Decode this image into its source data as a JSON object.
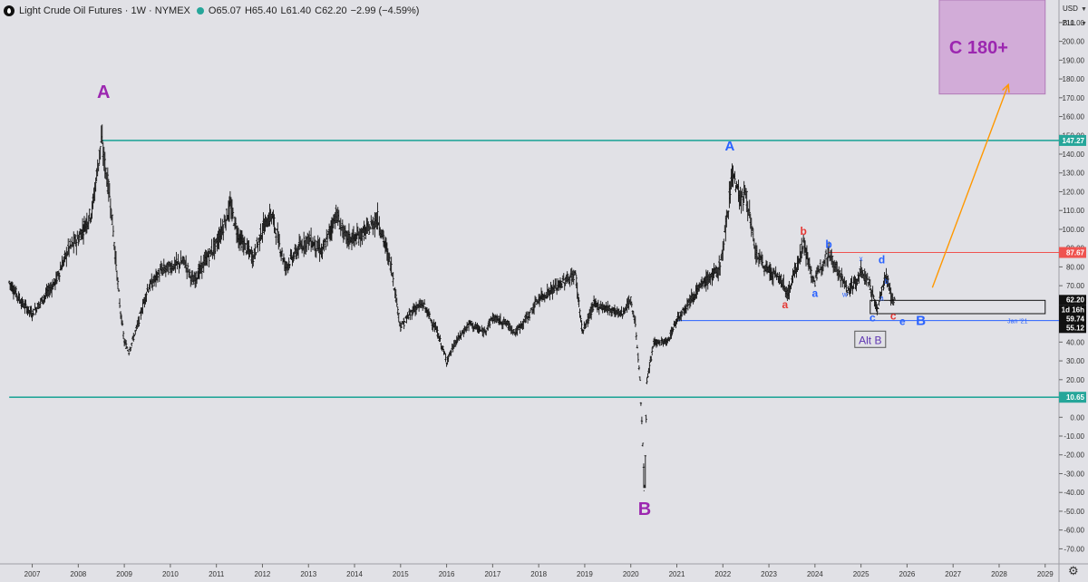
{
  "header": {
    "title": "Light Crude Oil Futures · 1W · NYMEX",
    "open": "O65.07",
    "high": "H65.40",
    "low": "L61.40",
    "close": "C62.20",
    "change": "−2.99 (−4.59%)"
  },
  "price_axis": {
    "unit_currency": "USD",
    "unit_measure": "BLL"
  },
  "colors": {
    "background": "#e1e1e6",
    "teal_level": "#26a69a",
    "red_level": "#ef5350",
    "blue_level": "#2962ff",
    "wave_purple": "#9c27b0",
    "wave_blue": "#2962ff",
    "wave_red": "#e53935",
    "target_box": "#d2acd8",
    "arrow": "#ff9800",
    "candles": "#111111"
  },
  "icons": {
    "symbol": "oil-drop-icon",
    "status": "market-status-dot-icon",
    "settings": "gear-icon"
  },
  "chart_data": {
    "type": "candlestick",
    "title": "Light Crude Oil Futures · 1W · NYMEX",
    "ylim": [
      -80,
      220
    ],
    "y_ticks": [
      -70,
      -60,
      -50,
      -40,
      -30,
      -20,
      -10,
      0,
      10,
      20,
      30,
      40,
      50,
      60,
      70,
      80,
      90,
      100,
      110,
      120,
      130,
      140,
      150,
      160,
      170,
      180,
      190,
      200,
      210
    ],
    "x_ticks": [
      "2007",
      "2008",
      "2009",
      "2010",
      "2011",
      "2012",
      "2013",
      "2014",
      "2015",
      "2016",
      "2017",
      "2018",
      "2019",
      "2020",
      "2021",
      "2022",
      "2023",
      "2024",
      "2025",
      "2026",
      "2027",
      "2028",
      "2029"
    ],
    "price_path": [
      [
        2006.5,
        72
      ],
      [
        2006.8,
        60
      ],
      [
        2007.0,
        55
      ],
      [
        2007.2,
        62
      ],
      [
        2007.5,
        72
      ],
      [
        2007.8,
        90
      ],
      [
        2008.0,
        95
      ],
      [
        2008.3,
        110
      ],
      [
        2008.5,
        147.27
      ],
      [
        2008.7,
        115
      ],
      [
        2008.9,
        60
      ],
      [
        2009.0,
        40
      ],
      [
        2009.1,
        35
      ],
      [
        2009.3,
        50
      ],
      [
        2009.5,
        68
      ],
      [
        2009.8,
        78
      ],
      [
        2010.0,
        80
      ],
      [
        2010.3,
        83
      ],
      [
        2010.5,
        72
      ],
      [
        2010.8,
        85
      ],
      [
        2011.0,
        92
      ],
      [
        2011.3,
        112
      ],
      [
        2011.5,
        95
      ],
      [
        2011.8,
        85
      ],
      [
        2012.0,
        100
      ],
      [
        2012.2,
        108
      ],
      [
        2012.5,
        80
      ],
      [
        2012.8,
        90
      ],
      [
        2013.0,
        95
      ],
      [
        2013.3,
        88
      ],
      [
        2013.6,
        108
      ],
      [
        2013.8,
        96
      ],
      [
        2014.0,
        95
      ],
      [
        2014.3,
        100
      ],
      [
        2014.5,
        106
      ],
      [
        2014.8,
        80
      ],
      [
        2015.0,
        48
      ],
      [
        2015.3,
        58
      ],
      [
        2015.5,
        60
      ],
      [
        2015.8,
        45
      ],
      [
        2016.0,
        30
      ],
      [
        2016.2,
        40
      ],
      [
        2016.5,
        50
      ],
      [
        2016.8,
        45
      ],
      [
        2017.0,
        53
      ],
      [
        2017.3,
        50
      ],
      [
        2017.5,
        45
      ],
      [
        2017.8,
        55
      ],
      [
        2018.0,
        63
      ],
      [
        2018.3,
        68
      ],
      [
        2018.6,
        73
      ],
      [
        2018.8,
        76
      ],
      [
        2018.95,
        45
      ],
      [
        2019.2,
        60
      ],
      [
        2019.5,
        58
      ],
      [
        2019.8,
        55
      ],
      [
        2020.0,
        62
      ],
      [
        2020.1,
        50
      ],
      [
        2020.2,
        20
      ],
      [
        2020.3,
        -37.63
      ],
      [
        2020.35,
        18
      ],
      [
        2020.5,
        40
      ],
      [
        2020.8,
        40
      ],
      [
        2021.0,
        52
      ],
      [
        2021.3,
        63
      ],
      [
        2021.6,
        72
      ],
      [
        2021.9,
        78
      ],
      [
        2022.0,
        88
      ],
      [
        2022.2,
        130.5
      ],
      [
        2022.4,
        115
      ],
      [
        2022.5,
        120
      ],
      [
        2022.7,
        88
      ],
      [
        2022.9,
        80
      ],
      [
        2023.0,
        78
      ],
      [
        2023.3,
        72
      ],
      [
        2023.4,
        65
      ],
      [
        2023.6,
        80
      ],
      [
        2023.75,
        93
      ],
      [
        2023.9,
        78
      ],
      [
        2024.0,
        72
      ],
      [
        2024.2,
        85
      ],
      [
        2024.3,
        87.67
      ],
      [
        2024.5,
        78
      ],
      [
        2024.7,
        68
      ],
      [
        2024.9,
        72
      ],
      [
        2025.0,
        78
      ],
      [
        2025.2,
        70
      ],
      [
        2025.35,
        57
      ],
      [
        2025.45,
        68
      ],
      [
        2025.55,
        76
      ],
      [
        2025.65,
        64
      ],
      [
        2025.75,
        62.2
      ]
    ],
    "last_bar": {
      "open": 65.07,
      "high": 65.4,
      "low": 61.4,
      "close": 62.2,
      "change": -2.99,
      "change_pct": -4.59
    },
    "levels": [
      {
        "value": 147.27,
        "color": "#26a69a",
        "label": "147.27",
        "from": 2008.5
      },
      {
        "value": 10.65,
        "color": "#26a69a",
        "label": "10.65",
        "from": 2006.5
      },
      {
        "value": 87.67,
        "color": "#ef5350",
        "label": "87.67",
        "from": 2024.3
      },
      {
        "value": 51.44,
        "color": "#2962ff",
        "label": "51.44",
        "from": 2021.0,
        "note": "Jan '21"
      }
    ],
    "price_labels": [
      {
        "value": 62.2,
        "text": "62.20",
        "bg": "#111111"
      },
      {
        "value": 58.8,
        "text": "1d 16h",
        "bg": "#111111"
      },
      {
        "value": 59.74,
        "text": "59.74",
        "bg": "#111111"
      },
      {
        "value": 55.12,
        "text": "55.12",
        "bg": "#111111"
      }
    ],
    "wave_labels": [
      {
        "text": "A",
        "x": 2008.55,
        "y": 170,
        "color": "#9c27b0",
        "size": "large"
      },
      {
        "text": "B",
        "x": 2020.3,
        "y": -52,
        "color": "#9c27b0",
        "size": "large"
      },
      {
        "text": "A",
        "x": 2022.15,
        "y": 142,
        "color": "#2962ff",
        "size": "medium"
      },
      {
        "text": "a",
        "x": 2023.35,
        "y": 58,
        "color": "#e53935",
        "size": "small"
      },
      {
        "text": "b",
        "x": 2023.75,
        "y": 97,
        "color": "#e53935",
        "size": "small"
      },
      {
        "text": "c",
        "x": 2025.7,
        "y": 52,
        "color": "#e53935",
        "size": "small"
      },
      {
        "text": "a",
        "x": 2024.0,
        "y": 64,
        "color": "#2962ff",
        "size": "small"
      },
      {
        "text": "b",
        "x": 2024.3,
        "y": 90,
        "color": "#2962ff",
        "size": "small"
      },
      {
        "text": "w",
        "x": 2024.65,
        "y": 64,
        "color": "#2962ff",
        "size": "tiny"
      },
      {
        "text": "x",
        "x": 2025.0,
        "y": 83,
        "color": "#2962ff",
        "size": "tiny"
      },
      {
        "text": "d",
        "x": 2025.45,
        "y": 82,
        "color": "#2962ff",
        "size": "small"
      },
      {
        "text": "c",
        "x": 2025.25,
        "y": 51,
        "color": "#2962ff",
        "size": "small"
      },
      {
        "text": "e",
        "x": 2025.9,
        "y": 49,
        "color": "#2962ff",
        "size": "small"
      },
      {
        "text": "B",
        "x": 2026.3,
        "y": 49,
        "color": "#2962ff",
        "size": "medium"
      },
      {
        "text": "b",
        "x": 2025.55,
        "y": 71,
        "color": "#2962ff",
        "size": "tiny"
      },
      {
        "text": "a",
        "x": 2025.45,
        "y": 62,
        "color": "#2962ff",
        "size": "tiny"
      }
    ],
    "annotations": [
      {
        "text": "Alt B",
        "x": 2025.2,
        "y": 41,
        "color": "#5e35b1",
        "boxed": true
      },
      {
        "text": "C 180+",
        "box_x": [
          2026.7,
          2029.0
        ],
        "box_y": [
          172,
          222
        ],
        "color": "#9c27b0"
      },
      {
        "text": "Jan '21",
        "x": 2028.4,
        "y": 51.44,
        "color": "#2962ff"
      }
    ],
    "arrow": {
      "from": [
        2026.55,
        69
      ],
      "to": [
        2028.2,
        177
      ],
      "color": "#ff9800"
    },
    "current_box": {
      "x": [
        2025.2,
        2029.0
      ],
      "y": [
        55.12,
        62.2
      ]
    }
  }
}
